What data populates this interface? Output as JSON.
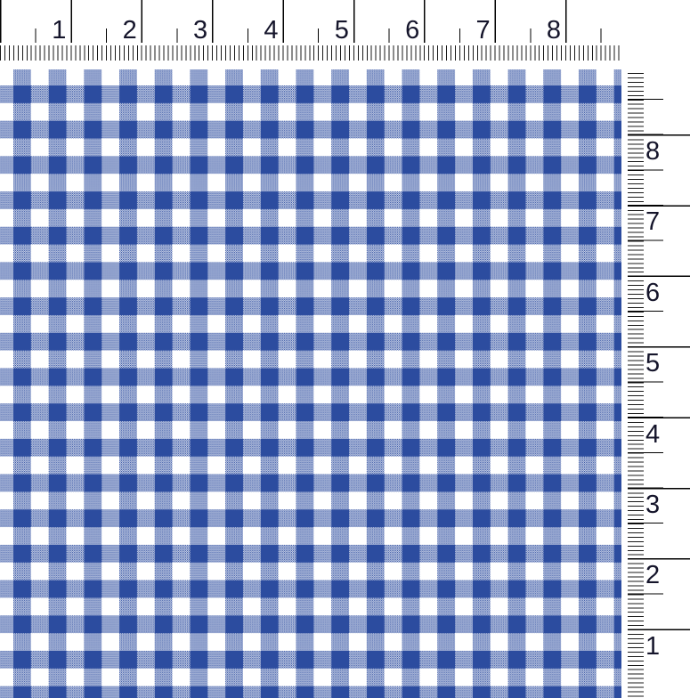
{
  "fabric": {
    "pattern_name": "blue gingham check",
    "stripe_color": "#2c4c9f",
    "halftone_average_color": "#95a5cf",
    "base_color": "#ffffff"
  },
  "top_ruler": {
    "numbers": [
      "1",
      "2",
      "3",
      "4",
      "5",
      "6",
      "7",
      "8"
    ],
    "number_color": "#15152b",
    "tick_color": "#000000",
    "fine_tick_color": "#1a1a1a"
  },
  "right_ruler": {
    "numbers": [
      "8",
      "7",
      "6",
      "5",
      "4",
      "3",
      "2",
      "1"
    ]
  }
}
